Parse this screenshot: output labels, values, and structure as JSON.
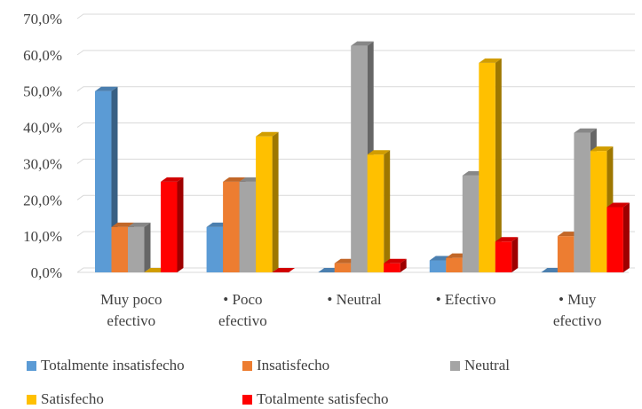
{
  "chart_data": {
    "type": "bar",
    "categories": [
      [
        "Muy poco",
        "efectivo"
      ],
      [
        "• Poco",
        "efectivo"
      ],
      [
        "• Neutral"
      ],
      [
        "• Efectivo"
      ],
      [
        "• Muy",
        "efectivo"
      ]
    ],
    "series": [
      {
        "name": "Totalmente insatisfecho",
        "color": "#5B9BD5",
        "values": [
          50.0,
          12.5,
          0.0,
          3.3,
          0.0
        ]
      },
      {
        "name": "Insatisfecho",
        "color": "#ED7D31",
        "values": [
          12.5,
          25.0,
          2.5,
          4.0,
          10.0
        ]
      },
      {
        "name": "Neutral",
        "color": "#A5A5A5",
        "values": [
          12.5,
          25.0,
          62.5,
          26.7,
          38.5
        ]
      },
      {
        "name": "Satisfecho",
        "color": "#FFC000",
        "values": [
          0.0,
          37.5,
          32.5,
          57.8,
          33.5
        ]
      },
      {
        "name": "Totalmente satisfecho",
        "color": "#FF0000",
        "values": [
          25.0,
          0.0,
          2.5,
          8.5,
          18.0
        ]
      }
    ],
    "yticks": [
      "0,0%",
      "10,0%",
      "20,0%",
      "30,0%",
      "40,0%",
      "50,0%",
      "60,0%",
      "70,0%"
    ],
    "ylim": [
      0,
      70
    ],
    "grid": true,
    "legend_position": "bottom",
    "style": "3d-clustered-column"
  }
}
